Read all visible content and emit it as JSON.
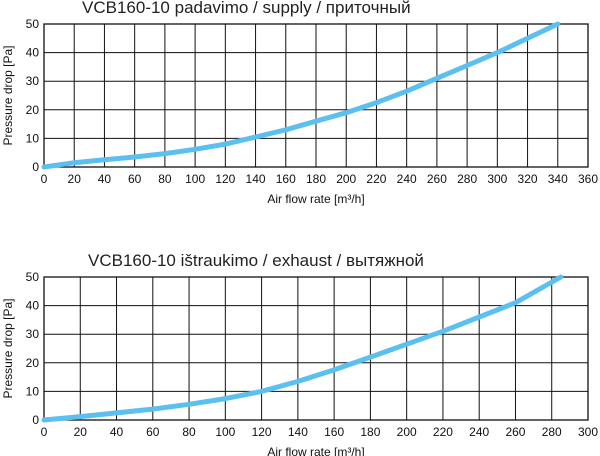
{
  "chart_data": [
    {
      "type": "line",
      "title": "VCB160-10 padavimo / supply / приточный",
      "xlabel": "Air flow rate [m³/h]",
      "ylabel": "Pressure drop [Pa]",
      "xlim": [
        0,
        360
      ],
      "ylim": [
        0,
        50
      ],
      "xticks": [
        0,
        20,
        40,
        60,
        80,
        100,
        120,
        140,
        160,
        180,
        200,
        220,
        240,
        260,
        280,
        300,
        320,
        340,
        360
      ],
      "yticks": [
        0,
        10,
        20,
        30,
        40,
        50
      ],
      "grid": true,
      "color": "#5bc0ef",
      "x": [
        0,
        20,
        40,
        60,
        80,
        100,
        120,
        140,
        160,
        180,
        200,
        220,
        240,
        260,
        280,
        300,
        320,
        340
      ],
      "y": [
        0,
        1.5,
        2.5,
        3.5,
        4.7,
        6.2,
        8,
        10.5,
        13,
        16,
        19,
        22.5,
        26.5,
        31,
        35.5,
        40,
        45,
        50
      ]
    },
    {
      "type": "line",
      "title": "VCB160-10 ištraukimo / exhaust / вытяжной",
      "xlabel": "Air flow rate [m³/h]",
      "ylabel": "Pressure drop [Pa]",
      "xlim": [
        0,
        300
      ],
      "ylim": [
        0,
        50
      ],
      "xticks": [
        0,
        20,
        40,
        60,
        80,
        100,
        120,
        140,
        160,
        180,
        200,
        220,
        240,
        260,
        280,
        300
      ],
      "yticks": [
        0,
        10,
        20,
        30,
        40,
        50
      ],
      "grid": true,
      "color": "#5bc0ef",
      "x": [
        0,
        20,
        40,
        60,
        80,
        100,
        120,
        140,
        160,
        180,
        200,
        220,
        240,
        260,
        285
      ],
      "y": [
        0,
        1.2,
        2.5,
        3.8,
        5.5,
        7.5,
        10,
        13.5,
        17.5,
        22,
        26.5,
        31,
        36,
        41,
        50
      ]
    }
  ]
}
